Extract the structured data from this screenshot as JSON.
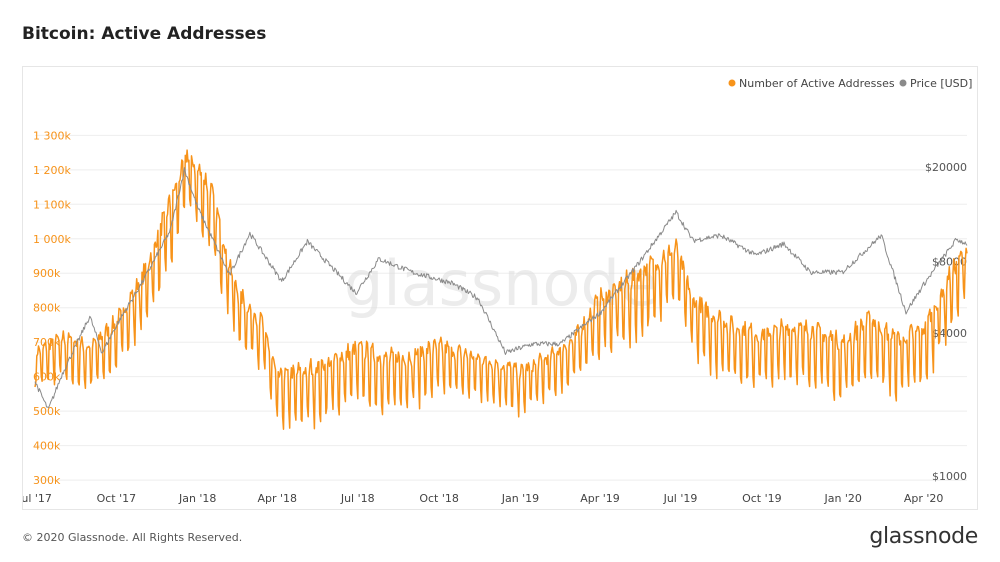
{
  "page": {
    "title": "Bitcoin: Active Addresses",
    "copyright": "© 2020 Glassnode. All Rights Reserved.",
    "brand": "glassnode",
    "watermark": "glassnode"
  },
  "colors": {
    "addresses": "#f7931a",
    "price": "#8a8a8a",
    "left_axis_text": "#f7931a",
    "right_axis_text": "#555555",
    "grid": "#eeeeee"
  },
  "chart_data": {
    "type": "line",
    "title": "Bitcoin: Active Addresses",
    "xlabel": "",
    "ylabel": "",
    "x_ticks": [
      "Jul '17",
      "Oct '17",
      "Jan '18",
      "Apr '18",
      "Jul '18",
      "Oct '18",
      "Jan '19",
      "Apr '19",
      "Jul '19",
      "Oct '19",
      "Jan '20",
      "Apr '20"
    ],
    "x_range": [
      "2017-07-01",
      "2020-05-20"
    ],
    "y_left": {
      "ticks": [
        300000,
        400000,
        500000,
        600000,
        700000,
        800000,
        900000,
        1000000,
        1100000,
        1200000,
        1300000
      ],
      "tick_labels": [
        "300k",
        "400k",
        "500k",
        "600k",
        "700k",
        "800k",
        "900k",
        "1 000k",
        "1 100k",
        "1 200k",
        "1 300k"
      ],
      "ylim": [
        280000,
        1330000
      ]
    },
    "y_right": {
      "scale": "log",
      "ticks": [
        1000,
        4000,
        8000,
        20000
      ],
      "tick_labels": [
        "$1000",
        "$4000",
        "$8000",
        "$20000"
      ],
      "ylim": [
        900,
        30000
      ]
    },
    "legend": {
      "placement": "top-right"
    },
    "grid": true,
    "series": [
      {
        "name": "Number of Active Addresses",
        "axis": "left",
        "style": "daily with weekly oscillation",
        "x": [
          "2017-07-01",
          "2017-08-01",
          "2017-09-01",
          "2017-10-01",
          "2017-11-01",
          "2017-12-01",
          "2017-12-20",
          "2018-01-15",
          "2018-02-15",
          "2018-03-15",
          "2018-04-01",
          "2018-05-01",
          "2018-06-01",
          "2018-07-01",
          "2018-08-01",
          "2018-09-01",
          "2018-10-01",
          "2018-11-01",
          "2018-12-01",
          "2019-01-01",
          "2019-02-01",
          "2019-03-01",
          "2019-04-01",
          "2019-05-01",
          "2019-06-01",
          "2019-06-26",
          "2019-07-15",
          "2019-08-01",
          "2019-09-01",
          "2019-10-01",
          "2019-11-01",
          "2019-12-01",
          "2020-01-01",
          "2020-02-01",
          "2020-03-01",
          "2020-04-01",
          "2020-05-01",
          "2020-05-20"
        ],
        "values": [
          640000,
          680000,
          650000,
          720000,
          850000,
          1050000,
          1200000,
          1100000,
          800000,
          720000,
          560000,
          570000,
          600000,
          640000,
          610000,
          620000,
          650000,
          630000,
          610000,
          580000,
          620000,
          670000,
          780000,
          820000,
          880000,
          930000,
          780000,
          740000,
          700000,
          680000,
          700000,
          690000,
          650000,
          720000,
          660000,
          690000,
          850000,
          930000
        ],
        "amplitude": [
          70000,
          80000,
          80000,
          90000,
          110000,
          130000,
          100000,
          120000,
          100000,
          90000,
          90000,
          110000,
          100000,
          100000,
          100000,
          100000,
          90000,
          80000,
          80000,
          80000,
          80000,
          80000,
          110000,
          120000,
          120000,
          100000,
          100000,
          110000,
          100000,
          100000,
          100000,
          100000,
          110000,
          110000,
          110000,
          110000,
          110000,
          100000
        ]
      },
      {
        "name": "Price [USD]",
        "axis": "right",
        "x": [
          "2017-07-01",
          "2017-07-16",
          "2017-08-01",
          "2017-09-01",
          "2017-09-15",
          "2017-10-01",
          "2017-11-01",
          "2017-12-01",
          "2017-12-17",
          "2018-01-01",
          "2018-02-06",
          "2018-03-01",
          "2018-04-06",
          "2018-05-05",
          "2018-06-29",
          "2018-07-25",
          "2018-09-01",
          "2018-10-15",
          "2018-11-14",
          "2018-12-15",
          "2019-01-15",
          "2019-02-15",
          "2019-04-02",
          "2019-05-15",
          "2019-06-26",
          "2019-07-15",
          "2019-08-15",
          "2019-09-24",
          "2019-10-26",
          "2019-11-25",
          "2019-12-31",
          "2020-02-13",
          "2020-03-12",
          "2020-04-01",
          "2020-05-08",
          "2020-05-20"
        ],
        "values": [
          2500,
          1900,
          2700,
          4700,
          3300,
          4300,
          6700,
          10800,
          19500,
          13500,
          7000,
          10500,
          6600,
          9700,
          5900,
          8200,
          7200,
          6500,
          5600,
          3300,
          3600,
          3600,
          4900,
          7900,
          12900,
          9800,
          10300,
          8500,
          9500,
          7200,
          7200,
          10300,
          4900,
          6400,
          9900,
          9500
        ]
      }
    ]
  }
}
